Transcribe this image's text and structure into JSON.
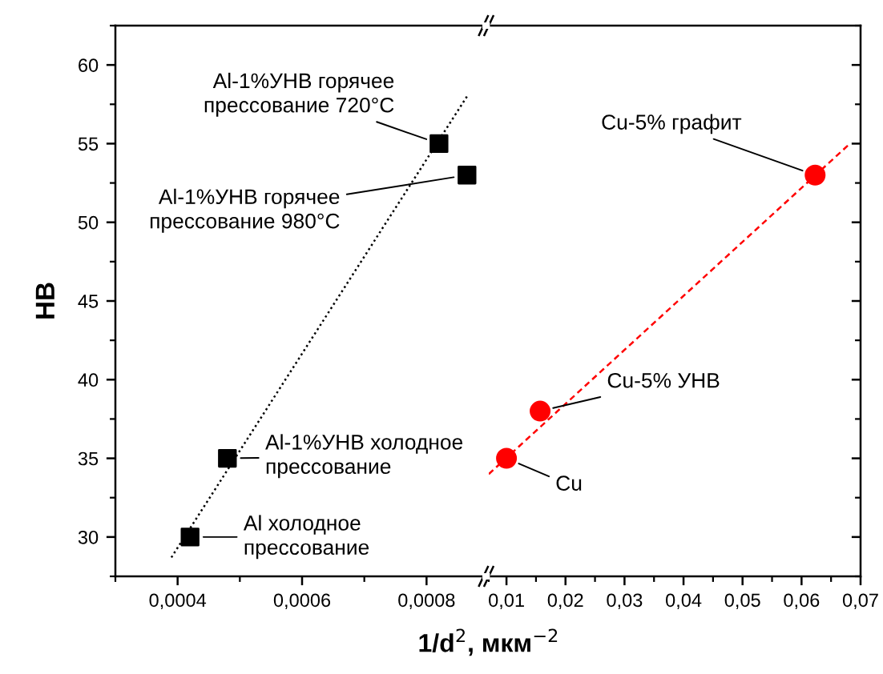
{
  "chart_data": [
    {
      "type": "scatter",
      "xlabel": "1/d$^{2}$, мкм$^{−2}$",
      "ylabel": "HB",
      "xlim": [
        0.0003,
        0.0009
      ],
      "xticks": [
        {
          "value": 0.0004,
          "label": "0,0004"
        },
        {
          "value": 0.0006,
          "label": "0,0006"
        },
        {
          "value": 0.0008,
          "label": "0,0008"
        }
      ],
      "ylim": [
        27.5,
        62.5
      ],
      "yticks": [
        30,
        35,
        40,
        45,
        50,
        55,
        60
      ],
      "series": [
        {
          "color": "#000000",
          "marker": "square",
          "x": [
            0.00042,
            0.00048,
            0.00082,
            0.000865
          ],
          "values": [
            30,
            35,
            55,
            53
          ]
        },
        {
          "type": "line",
          "color": "#000000",
          "line_style": "dotted",
          "marker": "none",
          "x": [
            0.00039,
            0.000865
          ],
          "values": [
            28.7,
            58
          ]
        }
      ],
      "annotations": [
        {
          "text": "Al-1%УНВ горячее\nпрессование 720°C",
          "x": 0.00082,
          "y": 55
        },
        {
          "text": "Al-1%УНВ горячее\nпрессование 980°C",
          "x": 0.000865,
          "y": 53
        },
        {
          "text": "Al-1%УНВ холодное\nпрессование",
          "x": 0.00048,
          "y": 35
        },
        {
          "text": "Al холодное\nпрессование",
          "x": 0.00042,
          "y": 30
        }
      ]
    },
    {
      "type": "scatter",
      "tick_labels": "x",
      "xlim": [
        0.007,
        0.07
      ],
      "xticks": [
        {
          "value": 0.01,
          "label": "0,01"
        },
        {
          "value": 0.02,
          "label": "0,02"
        },
        {
          "value": 0.03,
          "label": "0,03"
        },
        {
          "value": 0.04,
          "label": "0,04"
        },
        {
          "value": 0.05,
          "label": "0,05"
        },
        {
          "value": 0.06,
          "label": "0,06"
        },
        {
          "value": 0.07,
          "label": "0,07"
        }
      ],
      "ylim": [
        27.5,
        62.5
      ],
      "yticks": [
        30,
        35,
        40,
        45,
        50,
        55,
        60
      ],
      "series": [
        {
          "color": "#ff0000",
          "marker": "circle",
          "x": [
            0.01,
            0.0157,
            0.0623
          ],
          "values": [
            35,
            38,
            53
          ]
        },
        {
          "type": "line",
          "color": "#ff0000",
          "line_style": "dashed",
          "marker": "none",
          "x": [
            0.007,
            0.0682
          ],
          "values": [
            34,
            55
          ]
        }
      ],
      "annotations": [
        {
          "text": "Cu-5% графит",
          "x": 0.0623,
          "y": 53
        },
        {
          "text": "Cu-5% УНВ",
          "x": 0.0157,
          "y": 38
        },
        {
          "text": "Cu",
          "x": 0.01,
          "y": 35
        }
      ]
    }
  ]
}
